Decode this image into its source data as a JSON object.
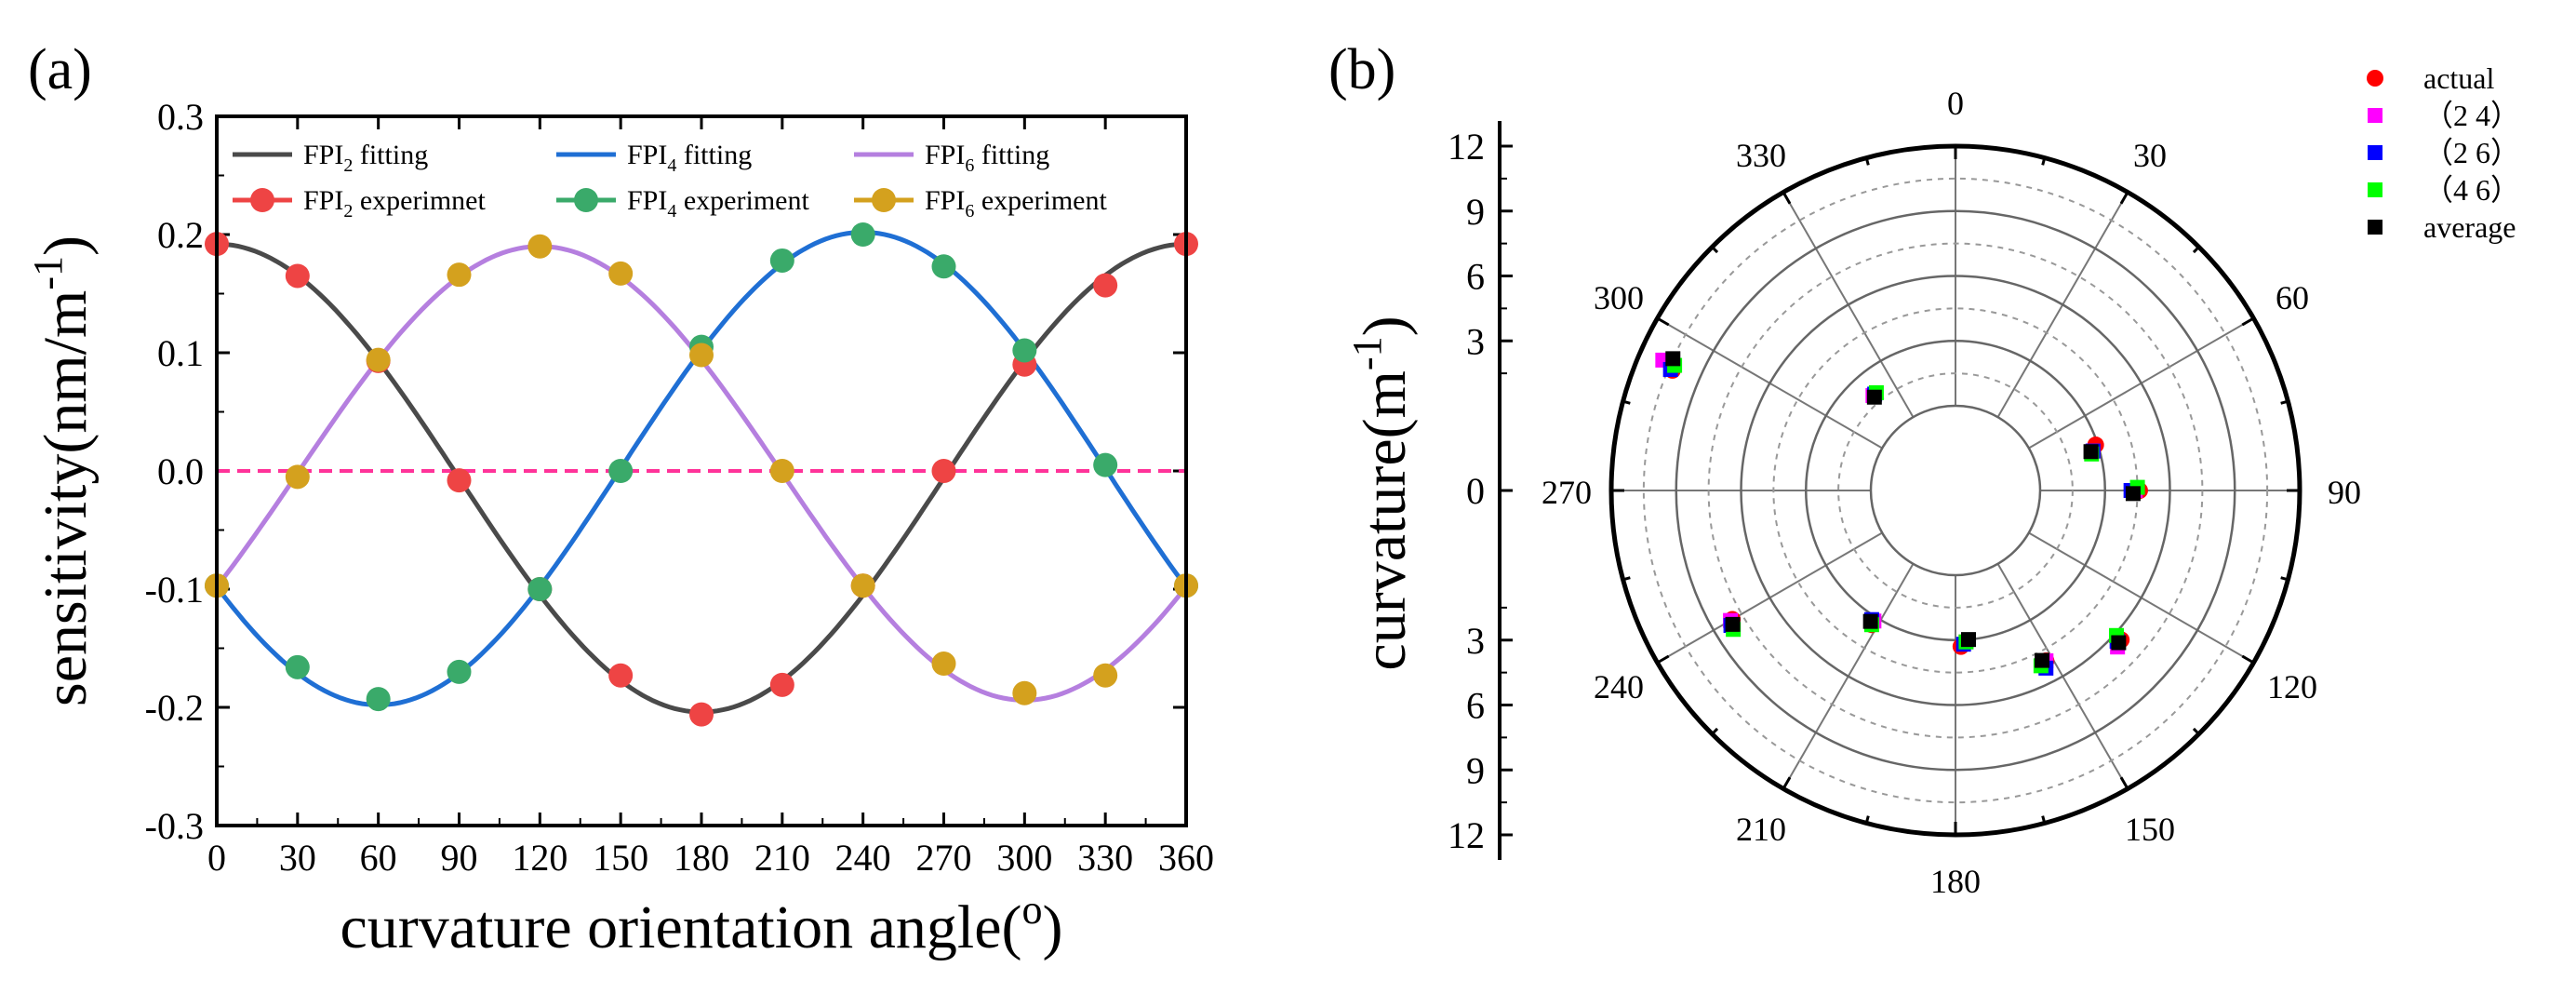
{
  "chart_data": [
    {
      "panel": "(a)",
      "type": "line",
      "title": "",
      "xlabel": "curvature orientation angle(°)",
      "ylabel": "sensitivity(nm/m⁻¹)",
      "xlim": [
        0,
        360
      ],
      "ylim": [
        -0.3,
        0.3
      ],
      "xticks": [
        "0",
        "30",
        "60",
        "90",
        "120",
        "150",
        "180",
        "210",
        "240",
        "270",
        "300",
        "330",
        "360"
      ],
      "yticks": [
        "-0.3",
        "-0.2",
        "-0.1",
        "0.0",
        "0.1",
        "0.2",
        "0.3"
      ],
      "x": [
        0,
        30,
        60,
        90,
        120,
        150,
        180,
        210,
        240,
        270,
        300,
        330,
        360
      ],
      "legend": {
        "placement": "top",
        "entries": [
          "FPI2 fitting",
          "FPI4 fitting",
          "FPI6 fitting",
          "FPI2 experimnet",
          "FPI4 experiment",
          "FPI6 experiment"
        ]
      },
      "series": [
        {
          "name": "FPI2 fitting",
          "kind": "fit",
          "color": "#4a4a4a",
          "amplitude": 0.198,
          "phase_deg": 0,
          "offset": -0.006
        },
        {
          "name": "FPI4 fitting",
          "kind": "fit",
          "color": "#1f6fd4",
          "amplitude": 0.2,
          "phase_deg": 240,
          "offset": 0.002
        },
        {
          "name": "FPI6 fitting",
          "kind": "fit",
          "color": "#b57fdf",
          "amplitude": 0.192,
          "phase_deg": 120,
          "offset": -0.002
        },
        {
          "name": "FPI2 experimnet",
          "kind": "points",
          "color": "#ee4444",
          "values": [
            0.192,
            0.165,
            0.093,
            -0.008,
            -0.1,
            -0.173,
            -0.206,
            -0.181,
            -0.097,
            0.0,
            0.09,
            0.157,
            0.192
          ]
        },
        {
          "name": "FPI4 experiment",
          "kind": "points",
          "color": "#3aaa6a",
          "values": [
            -0.097,
            -0.166,
            -0.193,
            -0.17,
            -0.1,
            0.0,
            0.105,
            0.178,
            0.2,
            0.173,
            0.102,
            0.005,
            -0.097
          ]
        },
        {
          "name": "FPI6 experiment",
          "kind": "points",
          "color": "#d4a11e",
          "values": [
            -0.097,
            -0.005,
            0.094,
            0.166,
            0.19,
            0.167,
            0.098,
            0.0,
            -0.097,
            -0.163,
            -0.188,
            -0.173,
            -0.097
          ]
        }
      ],
      "reference_line": {
        "y": 0.0,
        "color": "#ff3399",
        "style": "dashed"
      }
    },
    {
      "panel": "(b)",
      "type": "scatter",
      "subtype": "polar",
      "ylabel": "curvature(m⁻¹)",
      "rlim": [
        0,
        12
      ],
      "axis_ticks": [
        "12",
        "9",
        "6",
        "3",
        "0",
        "3",
        "6",
        "9",
        "12"
      ],
      "radial_values": [
        0,
        3,
        6,
        9,
        12
      ],
      "angle_labels": [
        "0",
        "30",
        "60",
        "90",
        "120",
        "150",
        "180",
        "210",
        "240",
        "270",
        "300",
        "330"
      ],
      "legend": {
        "placement": "top-right",
        "entries": [
          {
            "label": "actual",
            "color": "#ff0000",
            "marker": "circle"
          },
          {
            "label": "（2 4）",
            "color": "#ff00ff",
            "marker": "square"
          },
          {
            "label": "（2 6）",
            "color": "#0000ff",
            "marker": "square"
          },
          {
            "label": "（4 6）",
            "color": "#00ff00",
            "marker": "square"
          },
          {
            "label": "average",
            "color": "#000000",
            "marker": "square"
          }
        ]
      },
      "points": [
        {
          "series": "actual",
          "theta": [
            320,
            72,
            90,
            132,
            152,
            178,
            212,
            240,
            293
          ],
          "r": [
            1.9,
            2.9,
            4.6,
            6.4,
            5.0,
            3.3,
            3.4,
            8.0,
            10.3
          ]
        },
        {
          "series": "(2 4)",
          "theta": [
            319,
            74,
            90,
            134,
            152,
            176,
            212,
            240,
            294
          ],
          "r": [
            1.9,
            2.7,
            4.4,
            6.5,
            5.0,
            3.1,
            3.2,
            8.1,
            10.9
          ]
        },
        {
          "series": "(2 6)",
          "theta": [
            320,
            74,
            90,
            133,
            153,
            177,
            213,
            239,
            293
          ],
          "r": [
            1.9,
            2.7,
            4.2,
            6.3,
            5.3,
            3.2,
            3.2,
            8.2,
            10.4
          ]
        },
        {
          "series": "(4 6)",
          "theta": [
            321,
            75,
            89,
            132,
            154,
            176,
            212,
            238,
            294
          ],
          "r": [
            1.9,
            2.6,
            4.5,
            6.1,
            5.1,
            3.1,
            3.4,
            8.2,
            10.3
          ]
        },
        {
          "series": "average",
          "theta": [
            319,
            74,
            91,
            133,
            153,
            175,
            213,
            239,
            295
          ],
          "r": [
            1.8,
            2.6,
            4.3,
            6.4,
            4.9,
            3.0,
            3.3,
            8.1,
            10.5
          ]
        }
      ]
    }
  ]
}
